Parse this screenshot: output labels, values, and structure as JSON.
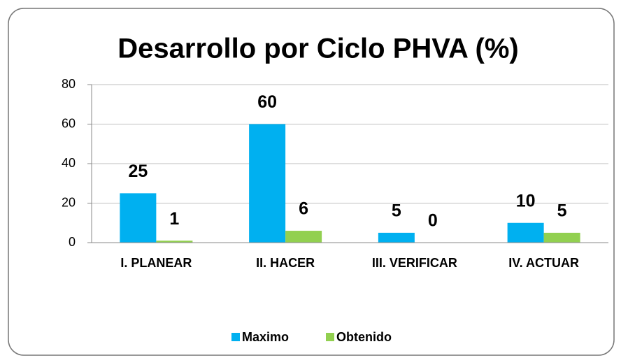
{
  "chart_data": {
    "type": "bar",
    "title": "Desarrollo por Ciclo PHVA (%)",
    "categories": [
      "I. PLANEAR",
      "II. HACER",
      "III. VERIFICAR",
      "IV. ACTUAR"
    ],
    "series": [
      {
        "name": "Maximo",
        "color": "#00b0f0",
        "values": [
          25,
          60,
          5,
          10
        ]
      },
      {
        "name": "Obtenido",
        "color": "#92d050",
        "values": [
          1,
          6,
          0,
          5
        ]
      }
    ],
    "ylim": [
      0,
      80
    ],
    "yticks": [
      0,
      20,
      40,
      60,
      80
    ],
    "grid": true,
    "legend": "bottom"
  }
}
